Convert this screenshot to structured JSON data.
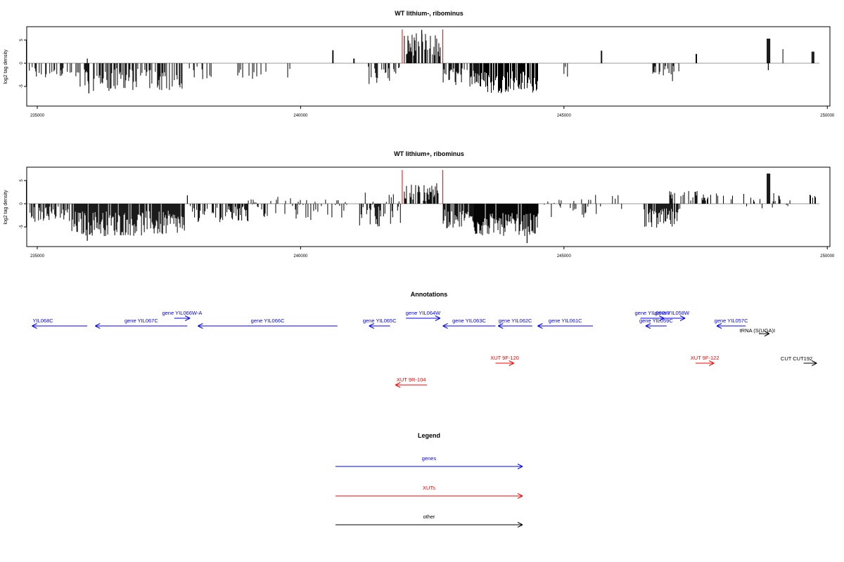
{
  "chart_data": [
    {
      "type": "bar",
      "title": "WT lithium-, ribominus",
      "ylabel": "log2 tag density",
      "xlim": [
        234800,
        250050
      ],
      "ylim": [
        -8.5,
        8.5
      ],
      "xticks": [
        235000,
        240000,
        245000,
        250000
      ],
      "yticks": [
        -5,
        0,
        5
      ],
      "highlight_region": {
        "start": 241930,
        "end": 242700,
        "color": "#ff0000"
      },
      "series": [
        {
          "baseline": 0,
          "x_range": [
            234800,
            249850
          ],
          "segments": [
            {
              "from": 234830,
              "to": 235650,
              "density": 0.35,
              "min": -3.5,
              "max": -0.5
            },
            {
              "from": 235700,
              "to": 237800,
              "density": 0.55,
              "min": -6.0,
              "max": -1.0,
              "spikes": [
                [
                  235950,
                  1.0
                ],
                [
                  235980,
                  -6.5
                ]
              ]
            },
            {
              "from": 237800,
              "to": 238300,
              "density": 0.25,
              "min": -3.5,
              "max": -0.5
            },
            {
              "from": 238800,
              "to": 240000,
              "density": 0.12,
              "min": -3.5,
              "max": -0.5
            },
            {
              "from": 240600,
              "to": 240620,
              "density": 1.0,
              "min": 2.8,
              "max": 2.8
            },
            {
              "from": 241000,
              "to": 241020,
              "density": 1.0,
              "min": 1.0,
              "max": 1.0
            },
            {
              "from": 241200,
              "to": 241900,
              "density": 0.35,
              "min": -4.5,
              "max": -0.5
            },
            {
              "from": 241950,
              "to": 242650,
              "density": 0.7,
              "min": 1.0,
              "max": 6.5,
              "spikes": [
                [
                  242300,
                  7.2
                ]
              ]
            },
            {
              "from": 242700,
              "to": 243400,
              "density": 0.55,
              "min": -5.0,
              "max": -1.0
            },
            {
              "from": 243400,
              "to": 244500,
              "density": 0.8,
              "min": -6.5,
              "max": -1.5
            },
            {
              "from": 244900,
              "to": 245100,
              "density": 0.15,
              "min": -3.0,
              "max": -0.5
            },
            {
              "from": 245700,
              "to": 245720,
              "density": 1.0,
              "min": 2.7,
              "max": 2.7
            },
            {
              "from": 246600,
              "to": 247200,
              "density": 0.4,
              "min": -4.0,
              "max": -0.5
            },
            {
              "from": 247500,
              "to": 247520,
              "density": 1.0,
              "min": 2.0,
              "max": 2.0
            },
            {
              "from": 248850,
              "to": 248900,
              "density": 1.0,
              "min": 5.3,
              "max": 5.3,
              "spikes": [
                [
                  248880,
                  -1.5
                ]
              ]
            },
            {
              "from": 248950,
              "to": 249200,
              "density": 0.12,
              "min": -2.5,
              "max": 3.5
            },
            {
              "from": 249700,
              "to": 249740,
              "density": 1.0,
              "min": 2.5,
              "max": 2.5
            }
          ]
        }
      ]
    },
    {
      "type": "bar",
      "title": "WT lithium+, ribominus",
      "ylabel": "log2 tag density",
      "xlim": [
        234800,
        250050
      ],
      "ylim": [
        -8.5,
        8.5
      ],
      "xticks": [
        235000,
        240000,
        245000,
        250000
      ],
      "yticks": [
        -5,
        0,
        5
      ],
      "highlight_region": {
        "start": 241930,
        "end": 242700,
        "color": "#ff0000"
      },
      "series": [
        {
          "baseline": 0,
          "x_range": [
            234800,
            249850
          ],
          "segments": [
            {
              "from": 234830,
              "to": 235600,
              "density": 0.6,
              "min": -4.0,
              "max": -0.5
            },
            {
              "from": 235650,
              "to": 237800,
              "density": 0.9,
              "min": -7.0,
              "max": -1.5,
              "spikes": [
                [
                  235950,
                  -8.0
                ],
                [
                  237850,
                  1.8
                ]
              ]
            },
            {
              "from": 237900,
              "to": 239000,
              "density": 0.45,
              "min": -4.0,
              "max": -0.5
            },
            {
              "from": 239000,
              "to": 240000,
              "density": 0.3,
              "min": -3.5,
              "max": 1.5
            },
            {
              "from": 240000,
              "to": 240900,
              "density": 0.3,
              "min": -3.5,
              "max": 1.0
            },
            {
              "from": 241100,
              "to": 241900,
              "density": 0.6,
              "min": -5.0,
              "max": 2.5
            },
            {
              "from": 241950,
              "to": 242650,
              "density": 0.6,
              "min": 0.5,
              "max": 4.5
            },
            {
              "from": 242700,
              "to": 243300,
              "density": 0.8,
              "min": -5.5,
              "max": -1.0
            },
            {
              "from": 243300,
              "to": 244500,
              "density": 0.95,
              "min": -7.0,
              "max": -2.0,
              "spikes": [
                [
                  244300,
                  -8.5
                ]
              ]
            },
            {
              "from": 244500,
              "to": 245500,
              "density": 0.25,
              "min": -3.0,
              "max": 1.0
            },
            {
              "from": 245500,
              "to": 246100,
              "density": 0.15,
              "min": -2.5,
              "max": 2.0
            },
            {
              "from": 246500,
              "to": 247200,
              "density": 0.85,
              "min": -5.5,
              "max": -1.0
            },
            {
              "from": 247000,
              "to": 247700,
              "density": 0.35,
              "min": 0.5,
              "max": 2.8
            },
            {
              "from": 247700,
              "to": 248800,
              "density": 0.2,
              "min": -1.5,
              "max": 2.5
            },
            {
              "from": 248850,
              "to": 248900,
              "density": 1.0,
              "min": 6.5,
              "max": 6.5
            },
            {
              "from": 248950,
              "to": 249300,
              "density": 0.4,
              "min": -3.0,
              "max": 2.5
            },
            {
              "from": 249650,
              "to": 249780,
              "density": 0.4,
              "min": 1.0,
              "max": 2.0
            }
          ]
        }
      ]
    }
  ],
  "annotations": {
    "title": "Annotations",
    "xlim": [
      234800,
      250050
    ],
    "features": [
      {
        "label": "YIL068C",
        "type": "gene",
        "start": 234900,
        "end": 235950,
        "strand": "-",
        "row": 1
      },
      {
        "label": "gene YIL067C",
        "type": "gene",
        "start": 236100,
        "end": 237850,
        "strand": "-",
        "row": 1
      },
      {
        "label": "gene YIL066W-A",
        "type": "gene",
        "start": 237600,
        "end": 237900,
        "strand": "+",
        "row": 0
      },
      {
        "label": "gene YIL066C",
        "type": "gene",
        "start": 238050,
        "end": 240700,
        "strand": "-",
        "row": 1
      },
      {
        "label": "gene YIL065C",
        "type": "gene",
        "start": 241300,
        "end": 241700,
        "strand": "-",
        "row": 1
      },
      {
        "label": "gene YIL064W",
        "type": "gene",
        "start": 242000,
        "end": 242650,
        "strand": "+",
        "row": 0
      },
      {
        "label": "gene YIL063C",
        "type": "gene",
        "start": 242700,
        "end": 243700,
        "strand": "-",
        "row": 1
      },
      {
        "label": "gene YIL062C",
        "type": "gene",
        "start": 243750,
        "end": 244400,
        "strand": "-",
        "row": 1
      },
      {
        "label": "gene YIL061C",
        "type": "gene",
        "start": 244500,
        "end": 245550,
        "strand": "-",
        "row": 1
      },
      {
        "label": "gene YIL060W",
        "type": "gene",
        "start": 246450,
        "end": 246900,
        "strand": "+",
        "row": 0
      },
      {
        "label": "gene YIL059C",
        "type": "gene",
        "start": 246550,
        "end": 246950,
        "strand": "-",
        "row": 1
      },
      {
        "label": "gene YIL058W",
        "type": "gene",
        "start": 246800,
        "end": 247300,
        "strand": "+",
        "row": 0
      },
      {
        "label": "gene YIL057C",
        "type": "gene",
        "start": 247900,
        "end": 248450,
        "strand": "-",
        "row": 1
      },
      {
        "label": "tRNA (S(UGA)I",
        "type": "other",
        "start": 248700,
        "end": 248900,
        "strand": "+",
        "row": 2
      },
      {
        "label": "XUT 9R-104",
        "type": "XUT",
        "start": 241800,
        "end": 242400,
        "strand": "-",
        "row": 4
      },
      {
        "label": "XUT 9F-120",
        "type": "XUT",
        "start": 243700,
        "end": 244050,
        "strand": "+",
        "row": 3
      },
      {
        "label": "XUT 9F-122",
        "type": "XUT",
        "start": 247500,
        "end": 247850,
        "strand": "+",
        "row": 3
      },
      {
        "label": "CUT CUT192",
        "type": "other",
        "start": 249550,
        "end": 249800,
        "strand": "+",
        "row": 5
      }
    ],
    "colors": {
      "gene": "#0000ff",
      "XUT": "#ff0000",
      "other": "#000000"
    }
  },
  "legend": {
    "title": "Legend",
    "items": [
      {
        "label": "genes",
        "color": "#0000ff"
      },
      {
        "label": "XUTs",
        "color": "#ff0000"
      },
      {
        "label": "other",
        "color": "#000000"
      }
    ]
  }
}
